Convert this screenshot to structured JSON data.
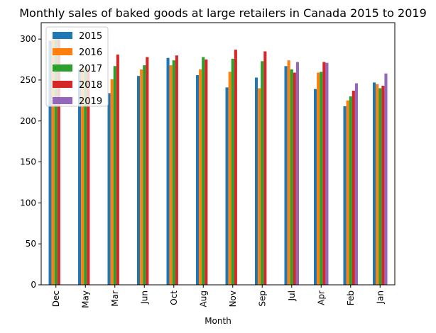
{
  "chart_data": {
    "type": "bar",
    "title": "Monthly sales of baked goods at large retailers in Canada 2015 to 2019",
    "xlabel": "Month",
    "ylabel": "",
    "ylim": [
      0,
      320
    ],
    "yticks": [
      0,
      50,
      100,
      150,
      200,
      250,
      300
    ],
    "grid": false,
    "legend_position": "top-left",
    "categories": [
      "Dec",
      "May",
      "Mar",
      "Jun",
      "Oct",
      "Aug",
      "Nov",
      "Sep",
      "Jul",
      "Apr",
      "Feb",
      "Jan"
    ],
    "series": [
      {
        "name": "2015",
        "color": "#1f77b4",
        "values": [
          298,
          263,
          234,
          255,
          277,
          256,
          241,
          253,
          267,
          239,
          218,
          247
        ]
      },
      {
        "name": "2016",
        "color": "#ff7f0e",
        "values": [
          300,
          264,
          251,
          263,
          268,
          263,
          260,
          240,
          274,
          259,
          225,
          245
        ]
      },
      {
        "name": "2017",
        "color": "#2ca02c",
        "values": [
          300,
          265,
          267,
          268,
          274,
          278,
          276,
          273,
          263,
          260,
          230,
          240
        ]
      },
      {
        "name": "2018",
        "color": "#d62728",
        "values": [
          300,
          264,
          281,
          278,
          280,
          275,
          287,
          285,
          259,
          272,
          237,
          243
        ]
      },
      {
        "name": "2019",
        "color": "#9467bd",
        "values": [
          null,
          null,
          null,
          null,
          null,
          null,
          null,
          null,
          272,
          271,
          246,
          258
        ]
      }
    ]
  }
}
